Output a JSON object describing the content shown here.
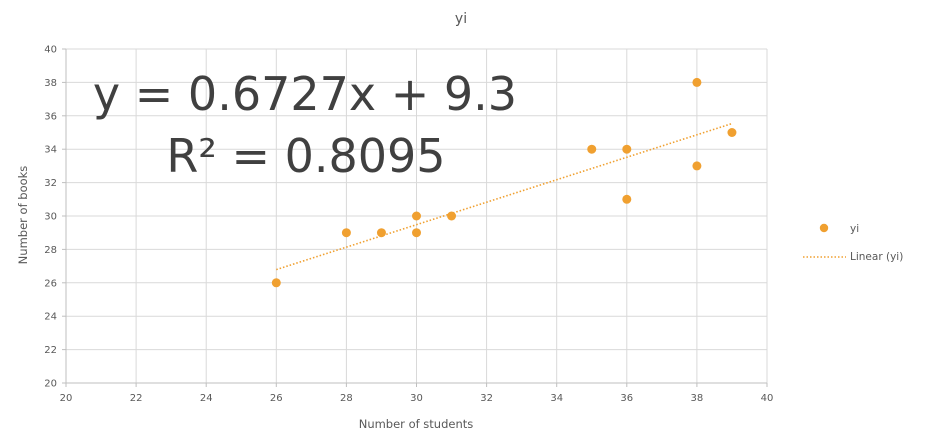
{
  "chart_data": {
    "type": "scatter",
    "title": "yi",
    "xlabel": "Number of students",
    "ylabel": "Number of books",
    "xlim": [
      20,
      40
    ],
    "ylim": [
      20,
      40
    ],
    "x_ticks": [
      "20",
      "22",
      "24",
      "26",
      "28",
      "30",
      "32",
      "34",
      "36",
      "38",
      "40"
    ],
    "y_ticks": [
      "20",
      "22",
      "24",
      "26",
      "28",
      "30",
      "32",
      "34",
      "36",
      "38",
      "40"
    ],
    "grid": true,
    "legend_position": "right",
    "series": [
      {
        "name": "yi",
        "color": "#F0A030",
        "points": [
          {
            "x": 26,
            "y": 26
          },
          {
            "x": 28,
            "y": 29
          },
          {
            "x": 29,
            "y": 29
          },
          {
            "x": 30,
            "y": 30
          },
          {
            "x": 30,
            "y": 29
          },
          {
            "x": 31,
            "y": 30
          },
          {
            "x": 35,
            "y": 34
          },
          {
            "x": 36,
            "y": 34
          },
          {
            "x": 36,
            "y": 31
          },
          {
            "x": 38,
            "y": 38
          },
          {
            "x": 38,
            "y": 33
          },
          {
            "x": 39,
            "y": 35
          }
        ]
      }
    ],
    "trendline": {
      "name": "Linear (yi)",
      "type": "linear",
      "slope": 0.6727,
      "intercept": 9.3,
      "x_range": [
        26,
        39
      ],
      "color": "#F0A030",
      "style": "dotted"
    },
    "annotations": {
      "equation": "y = 0.6727x + 9.3",
      "r_squared": "R² = 0.8095"
    }
  }
}
